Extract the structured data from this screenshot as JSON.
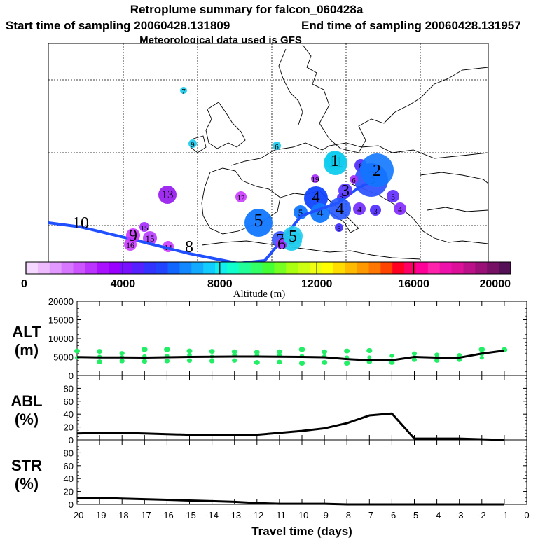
{
  "header": {
    "title": "Retroplume summary for falcon_060428a",
    "start_time": "Start time of sampling 20060428.131809",
    "end_time": "End time of sampling 20060428.131957",
    "met_data": "Meteorological data used is GFS"
  },
  "colors": {
    "track": "#1f4fff",
    "alt_dots": "#22ee66",
    "line": "#000000",
    "coast": "#000000"
  },
  "map": {
    "trajectory_labels": [
      {
        "num": "10",
        "day": -10,
        "color": "#1f4fff",
        "size": 0
      },
      {
        "num": "9",
        "day": -9,
        "color": "#cc33ff",
        "size": 10
      },
      {
        "num": "8",
        "day": -8,
        "color": "#1f4fff",
        "size": 0
      },
      {
        "num": "7",
        "day": -7,
        "color": "#3355ff",
        "size": 12
      },
      {
        "num": "6",
        "day": -6,
        "color": "#aa33ff",
        "size": 8
      },
      {
        "num": "5",
        "day": -5,
        "color": "#22ccee",
        "size": 14
      },
      {
        "num": "4",
        "day": -4,
        "color": "#2255ff",
        "size": 16
      },
      {
        "num": "3",
        "day": -3,
        "color": "#5533ff",
        "size": 10
      },
      {
        "num": "2",
        "day": -2,
        "color": "#1177ff",
        "size": 24
      },
      {
        "num": "1",
        "day": -1,
        "color": "#11ccee",
        "size": 14
      }
    ],
    "plume_blobs": [
      {
        "label": "7",
        "color": "#22ccee",
        "size": 5
      },
      {
        "label": "9",
        "color": "#22ccee",
        "size": 6
      },
      {
        "label": "6",
        "color": "#22ccee",
        "size": 6
      },
      {
        "label": "13",
        "color": "#9922ee",
        "size": 13
      },
      {
        "label": "12",
        "color": "#cc44ff",
        "size": 8
      },
      {
        "label": "15",
        "color": "#aa33ff",
        "size": 7
      },
      {
        "label": "16",
        "color": "#cc44ff",
        "size": 9
      },
      {
        "label": "15",
        "color": "#bb44ff",
        "size": 10
      },
      {
        "label": "14",
        "color": "#cc44ff",
        "size": 8
      },
      {
        "label": "5",
        "color": "#1177ff",
        "size": 20
      },
      {
        "label": "4",
        "color": "#1144ff",
        "size": 17
      },
      {
        "label": "4",
        "color": "#1177ff",
        "size": 14
      },
      {
        "label": "5",
        "color": "#1177ff",
        "size": 10
      },
      {
        "label": "11",
        "color": "#11ccee",
        "size": 17
      },
      {
        "label": "8",
        "color": "#5533ff",
        "size": 9
      },
      {
        "label": "3",
        "color": "#3355ff",
        "size": 24
      },
      {
        "label": "5",
        "color": "#6633ff",
        "size": 9
      },
      {
        "label": "3",
        "color": "#5533ff",
        "size": 8
      },
      {
        "label": "4",
        "color": "#7733ff",
        "size": 9
      },
      {
        "label": "4",
        "color": "#8833ff",
        "size": 9
      },
      {
        "label": "19",
        "color": "#aa33ff",
        "size": 6
      },
      {
        "label": "3",
        "color": "#5533ff",
        "size": 6
      },
      {
        "label": "8",
        "color": "#4433ff",
        "size": 6
      },
      {
        "label": "5",
        "color": "#22ccee",
        "size": 15
      },
      {
        "label": "6",
        "color": "#aa33ff",
        "size": 6
      }
    ]
  },
  "colorbar": {
    "ticks": [
      "0",
      "4000",
      "8000",
      "12000",
      "16000",
      "20000"
    ],
    "label": "Altitude (m)",
    "colors": [
      "#f4d8ff",
      "#eebbff",
      "#e299ff",
      "#d777ff",
      "#cc55ff",
      "#bb33ff",
      "#aa11ff",
      "#9900ff",
      "#7711ff",
      "#5522ff",
      "#3333ff",
      "#2244ff",
      "#1166ff",
      "#1188ff",
      "#11aaff",
      "#11ccff",
      "#11eeee",
      "#11ffcc",
      "#22ff99",
      "#33ff66",
      "#44ff33",
      "#77ff22",
      "#aaff11",
      "#ccff11",
      "#eeff11",
      "#ffff00",
      "#ffdd00",
      "#ffbb00",
      "#ff9900",
      "#ff7700",
      "#ff4400",
      "#ff0022",
      "#ff0066",
      "#ff0099",
      "#ff22aa",
      "#ee11aa",
      "#dd1199",
      "#bb1188",
      "#991177",
      "#771166",
      "#551155"
    ]
  },
  "chart_data": [
    {
      "type": "scatter",
      "title": "ALT (m)",
      "ylabel_line1": "ALT",
      "ylabel_line2": "(m)",
      "ylim": [
        0,
        20000
      ],
      "yticks": [
        "0",
        "5000",
        "10000",
        "15000",
        "20000"
      ],
      "x": [
        -20,
        -19,
        -18,
        -17,
        -16,
        -15,
        -14,
        -13,
        -12,
        -11,
        -10,
        -9,
        -8,
        -7,
        -6,
        -5,
        -4,
        -3,
        -2,
        -1
      ],
      "median_line": [
        4950,
        4850,
        4850,
        4800,
        4900,
        5000,
        5050,
        5100,
        5100,
        5050,
        5000,
        4900,
        4400,
        4100,
        4100,
        5000,
        4800,
        4800,
        5900,
        6700
      ],
      "spread_points": [
        [
          -20,
          6600
        ],
        [
          -20,
          4800
        ],
        [
          -19,
          6500
        ],
        [
          -19,
          5100
        ],
        [
          -19,
          3700
        ],
        [
          -18,
          6000
        ],
        [
          -18,
          5000
        ],
        [
          -18,
          3900
        ],
        [
          -17,
          7000
        ],
        [
          -17,
          5200
        ],
        [
          -17,
          3800
        ],
        [
          -16,
          7000
        ],
        [
          -16,
          5300
        ],
        [
          -16,
          3900
        ],
        [
          -15,
          6600
        ],
        [
          -15,
          5500
        ],
        [
          -15,
          4000
        ],
        [
          -14,
          6500
        ],
        [
          -14,
          5100
        ],
        [
          -14,
          3900
        ],
        [
          -13,
          6400
        ],
        [
          -13,
          5600
        ],
        [
          -13,
          4000
        ],
        [
          -12,
          6300
        ],
        [
          -12,
          5500
        ],
        [
          -12,
          3500
        ],
        [
          -11,
          6400
        ],
        [
          -11,
          5400
        ],
        [
          -11,
          3600
        ],
        [
          -10,
          7000
        ],
        [
          -10,
          5300
        ],
        [
          -10,
          3300
        ],
        [
          -9,
          6400
        ],
        [
          -9,
          5200
        ],
        [
          -9,
          3500
        ],
        [
          -8,
          6600
        ],
        [
          -8,
          4900
        ],
        [
          -8,
          3300
        ],
        [
          -7,
          6700
        ],
        [
          -7,
          4900
        ],
        [
          -7,
          3700
        ],
        [
          -6,
          5300
        ],
        [
          -6,
          4000
        ],
        [
          -6,
          3500
        ],
        [
          -5,
          5900
        ],
        [
          -5,
          5000
        ],
        [
          -5,
          4200
        ],
        [
          -4,
          5600
        ],
        [
          -4,
          4900
        ],
        [
          -4,
          4000
        ],
        [
          -3,
          5500
        ],
        [
          -3,
          4900
        ],
        [
          -3,
          4200
        ],
        [
          -2,
          7000
        ],
        [
          -2,
          5800
        ],
        [
          -2,
          4800
        ],
        [
          -1,
          6900
        ]
      ],
      "xlim": [
        -20,
        0
      ]
    },
    {
      "type": "line",
      "title": "ABL (%)",
      "ylabel_line1": "ABL",
      "ylabel_line2": "(%)",
      "ylim": [
        0,
        100
      ],
      "yticks": [
        "0",
        "20",
        "40",
        "60",
        "80"
      ],
      "x": [
        -20,
        -19,
        -18,
        -17,
        -16,
        -15,
        -14,
        -13,
        -12,
        -11,
        -10,
        -9,
        -8,
        -7,
        -6,
        -5,
        -4,
        -3,
        -2,
        -1
      ],
      "values": [
        10,
        11,
        11,
        10,
        9,
        8,
        8,
        8,
        8,
        11,
        14,
        18,
        26,
        38,
        41,
        2,
        2,
        2,
        1,
        0
      ],
      "xlim": [
        -20,
        0
      ]
    },
    {
      "type": "line",
      "title": "STR (%)",
      "ylabel_line1": "STR",
      "ylabel_line2": "(%)",
      "ylim": [
        0,
        100
      ],
      "yticks": [
        "0",
        "20",
        "40",
        "60",
        "80"
      ],
      "x": [
        -20,
        -19,
        -18,
        -17,
        -16,
        -15,
        -14,
        -13,
        -12,
        -11,
        -10,
        -9,
        -8,
        -7,
        -6,
        -5,
        -4,
        -3,
        -2,
        -1
      ],
      "values": [
        10,
        10,
        9,
        8,
        7,
        6,
        5,
        4,
        2,
        1,
        1,
        1,
        0,
        0,
        0,
        0,
        0,
        0,
        0,
        0
      ],
      "xlim": [
        -20,
        0
      ],
      "xticks": [
        "-20",
        "-19",
        "-18",
        "-17",
        "-16",
        "-15",
        "-14",
        "-13",
        "-12",
        "-11",
        "-10",
        "-9",
        "-8",
        "-7",
        "-6",
        "-5",
        "-4",
        "-3",
        "-2",
        "-1",
        "0"
      ],
      "xlabel": "Travel time (days)"
    }
  ]
}
